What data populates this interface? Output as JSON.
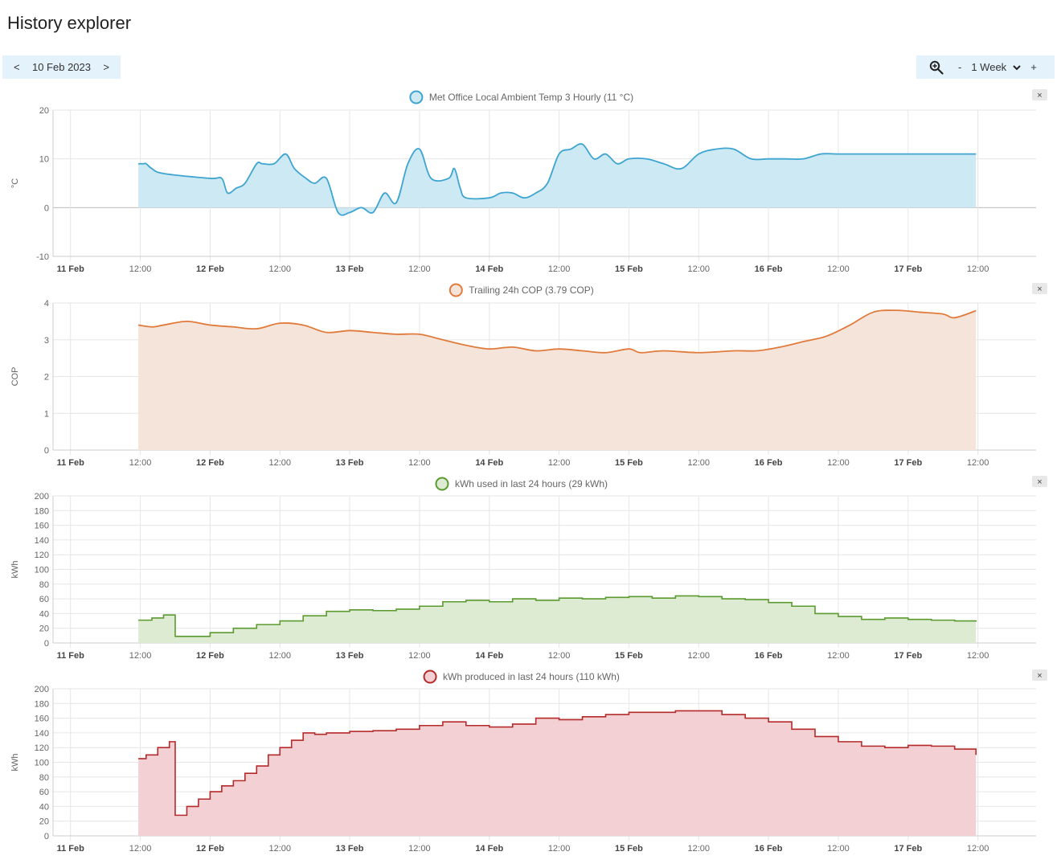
{
  "page": {
    "title": "History explorer"
  },
  "date_nav": {
    "prev": "<",
    "date": "10 Feb 2023",
    "next": ">"
  },
  "zoom": {
    "icon": "zoom-in-icon",
    "minus": "-",
    "range": "1 Week",
    "dropdown_icon": "chevron-down-icon",
    "plus": "+"
  },
  "x_ticks": [
    "11 Feb",
    "12:00",
    "12 Feb",
    "12:00",
    "13 Feb",
    "12:00",
    "14 Feb",
    "12:00",
    "15 Feb",
    "12:00",
    "16 Feb",
    "12:00",
    "17 Feb",
    "12:00"
  ],
  "close_label": "×",
  "chart_data": [
    {
      "type": "area",
      "title": "Met Office Local Ambient Temp 3 Hourly (11 °C)",
      "ylabel": "°C",
      "ylim": [
        -10,
        20
      ],
      "yticks": [
        -10,
        0,
        10,
        20
      ],
      "color": "#3ea4d0",
      "fill": "#cde9f3",
      "step": false,
      "series": [
        {
          "name": "Met Office Local Ambient Temp 3 Hourly (11 °C)",
          "x": [
            "2023-02-11T11:40",
            "2023-02-11T12:30",
            "2023-02-11T13:00",
            "2023-02-11T14:00",
            "2023-02-11T16:00",
            "2023-02-12T00:00",
            "2023-02-12T02:00",
            "2023-02-12T03:00",
            "2023-02-12T04:30",
            "2023-02-12T06:00",
            "2023-02-12T08:00",
            "2023-02-12T09:00",
            "2023-02-12T11:00",
            "2023-02-12T13:00",
            "2023-02-12T14:30",
            "2023-02-12T16:30",
            "2023-02-12T18:00",
            "2023-02-12T20:00",
            "2023-02-12T22:00",
            "2023-02-13T00:00",
            "2023-02-13T02:00",
            "2023-02-13T04:00",
            "2023-02-13T06:00",
            "2023-02-13T08:00",
            "2023-02-13T10:00",
            "2023-02-13T12:00",
            "2023-02-13T14:00",
            "2023-02-13T17:00",
            "2023-02-13T18:00",
            "2023-02-13T19:00",
            "2023-02-13T20:00",
            "2023-02-14T00:00",
            "2023-02-14T02:00",
            "2023-02-14T04:00",
            "2023-02-14T06:00",
            "2023-02-14T08:00",
            "2023-02-14T10:00",
            "2023-02-14T12:00",
            "2023-02-14T14:00",
            "2023-02-14T16:00",
            "2023-02-14T18:00",
            "2023-02-14T20:00",
            "2023-02-14T22:00",
            "2023-02-15T00:00",
            "2023-02-15T03:00",
            "2023-02-15T06:00",
            "2023-02-15T09:00",
            "2023-02-15T12:00",
            "2023-02-15T15:00",
            "2023-02-15T18:00",
            "2023-02-15T21:00",
            "2023-02-16T00:00",
            "2023-02-16T03:00",
            "2023-02-16T06:00",
            "2023-02-16T09:00",
            "2023-02-16T12:00",
            "2023-02-16T15:00",
            "2023-02-16T18:00",
            "2023-02-16T20:00",
            "2023-02-17T00:00",
            "2023-02-17T06:00",
            "2023-02-17T11:40"
          ],
          "y": [
            9,
            9,
            9,
            8,
            7,
            6,
            6,
            3,
            4,
            5,
            9,
            9,
            9,
            11,
            8,
            6,
            5,
            6,
            -1,
            -1,
            0,
            -1,
            3,
            1,
            9,
            12,
            6,
            6,
            8,
            4,
            2,
            2,
            3,
            3,
            2,
            3,
            5,
            11,
            12,
            13,
            10,
            11,
            9,
            10,
            10,
            9,
            8,
            11,
            12,
            12,
            10,
            10,
            10,
            10,
            11,
            11,
            11,
            11,
            11,
            11,
            11,
            11
          ]
        }
      ]
    },
    {
      "type": "area",
      "title": "Trailing 24h COP (3.79 COP)",
      "ylabel": "COP",
      "ylim": [
        0,
        4
      ],
      "yticks": [
        0,
        1,
        2,
        3,
        4
      ],
      "color": "#e07b3c",
      "fill": "#f5e4da",
      "step": false,
      "series": [
        {
          "name": "Trailing 24h COP (3.79 COP)",
          "x": [
            "2023-02-11T11:40",
            "2023-02-11T14:00",
            "2023-02-11T16:00",
            "2023-02-11T20:00",
            "2023-02-12T00:00",
            "2023-02-12T04:00",
            "2023-02-12T08:00",
            "2023-02-12T12:00",
            "2023-02-12T16:00",
            "2023-02-12T20:00",
            "2023-02-13T00:00",
            "2023-02-13T04:00",
            "2023-02-13T08:00",
            "2023-02-13T12:00",
            "2023-02-13T16:00",
            "2023-02-13T20:00",
            "2023-02-14T00:00",
            "2023-02-14T04:00",
            "2023-02-14T08:00",
            "2023-02-14T12:00",
            "2023-02-14T16:00",
            "2023-02-14T20:00",
            "2023-02-15T00:00",
            "2023-02-15T02:00",
            "2023-02-15T06:00",
            "2023-02-15T12:00",
            "2023-02-15T18:00",
            "2023-02-15T22:00",
            "2023-02-16T02:00",
            "2023-02-16T06:00",
            "2023-02-16T10:00",
            "2023-02-16T14:00",
            "2023-02-16T18:00",
            "2023-02-16T22:00",
            "2023-02-17T02:00",
            "2023-02-17T06:00",
            "2023-02-17T08:00",
            "2023-02-17T11:40"
          ],
          "y": [
            3.4,
            3.35,
            3.4,
            3.5,
            3.4,
            3.35,
            3.3,
            3.45,
            3.4,
            3.2,
            3.25,
            3.2,
            3.15,
            3.15,
            3.0,
            2.85,
            2.75,
            2.8,
            2.7,
            2.75,
            2.7,
            2.65,
            2.75,
            2.65,
            2.7,
            2.65,
            2.7,
            2.7,
            2.8,
            2.95,
            3.1,
            3.4,
            3.75,
            3.8,
            3.75,
            3.7,
            3.6,
            3.79
          ]
        }
      ]
    },
    {
      "type": "area",
      "title": "kWh used in last 24 hours (29 kWh)",
      "ylabel": "kWh",
      "ylim": [
        0,
        200
      ],
      "yticks": [
        0,
        20,
        40,
        60,
        80,
        100,
        120,
        140,
        160,
        180,
        200
      ],
      "color": "#5a9a2f",
      "fill": "#dcebd2",
      "step": true,
      "series": [
        {
          "name": "kWh used in last 24 hours (29 kWh)",
          "x": [
            "2023-02-11T11:40",
            "2023-02-11T14:00",
            "2023-02-11T16:00",
            "2023-02-11T18:00",
            "2023-02-12T00:00",
            "2023-02-12T04:00",
            "2023-02-12T08:00",
            "2023-02-12T12:00",
            "2023-02-12T16:00",
            "2023-02-12T20:00",
            "2023-02-13T00:00",
            "2023-02-13T04:00",
            "2023-02-13T08:00",
            "2023-02-13T12:00",
            "2023-02-13T16:00",
            "2023-02-13T20:00",
            "2023-02-14T00:00",
            "2023-02-14T04:00",
            "2023-02-14T08:00",
            "2023-02-14T12:00",
            "2023-02-14T16:00",
            "2023-02-14T20:00",
            "2023-02-15T00:00",
            "2023-02-15T04:00",
            "2023-02-15T08:00",
            "2023-02-15T12:00",
            "2023-02-15T16:00",
            "2023-02-15T20:00",
            "2023-02-16T00:00",
            "2023-02-16T04:00",
            "2023-02-16T08:00",
            "2023-02-16T12:00",
            "2023-02-16T16:00",
            "2023-02-16T20:00",
            "2023-02-17T00:00",
            "2023-02-17T04:00",
            "2023-02-17T08:00",
            "2023-02-17T11:40"
          ],
          "y": [
            31,
            34,
            38,
            9,
            14,
            20,
            25,
            30,
            37,
            43,
            45,
            44,
            46,
            50,
            56,
            58,
            56,
            60,
            58,
            61,
            60,
            62,
            63,
            61,
            64,
            63,
            60,
            59,
            55,
            50,
            40,
            36,
            32,
            34,
            32,
            31,
            30,
            29
          ]
        }
      ]
    },
    {
      "type": "area",
      "title": "kWh produced in last 24 hours (110 kWh)",
      "ylabel": "kWh",
      "ylim": [
        0,
        200
      ],
      "yticks": [
        0,
        20,
        40,
        60,
        80,
        100,
        120,
        140,
        160,
        180,
        200
      ],
      "color": "#b52a2a",
      "fill": "#f2d0d3",
      "step": true,
      "series": [
        {
          "name": "kWh produced in last 24 hours (110 kWh)",
          "x": [
            "2023-02-11T11:40",
            "2023-02-11T13:00",
            "2023-02-11T15:00",
            "2023-02-11T17:00",
            "2023-02-11T18:00",
            "2023-02-11T20:00",
            "2023-02-11T22:00",
            "2023-02-12T00:00",
            "2023-02-12T02:00",
            "2023-02-12T04:00",
            "2023-02-12T06:00",
            "2023-02-12T08:00",
            "2023-02-12T10:00",
            "2023-02-12T12:00",
            "2023-02-12T14:00",
            "2023-02-12T16:00",
            "2023-02-12T18:00",
            "2023-02-12T20:00",
            "2023-02-13T00:00",
            "2023-02-13T04:00",
            "2023-02-13T08:00",
            "2023-02-13T12:00",
            "2023-02-13T16:00",
            "2023-02-13T20:00",
            "2023-02-14T00:00",
            "2023-02-14T04:00",
            "2023-02-14T08:00",
            "2023-02-14T12:00",
            "2023-02-14T16:00",
            "2023-02-14T20:00",
            "2023-02-15T00:00",
            "2023-02-15T04:00",
            "2023-02-15T08:00",
            "2023-02-15T12:00",
            "2023-02-15T16:00",
            "2023-02-15T20:00",
            "2023-02-16T00:00",
            "2023-02-16T04:00",
            "2023-02-16T08:00",
            "2023-02-16T12:00",
            "2023-02-16T16:00",
            "2023-02-16T20:00",
            "2023-02-17T00:00",
            "2023-02-17T04:00",
            "2023-02-17T08:00",
            "2023-02-17T11:40"
          ],
          "y": [
            105,
            110,
            120,
            128,
            28,
            40,
            50,
            60,
            68,
            75,
            85,
            95,
            110,
            120,
            130,
            140,
            138,
            140,
            142,
            143,
            145,
            150,
            155,
            150,
            148,
            152,
            160,
            158,
            162,
            165,
            168,
            168,
            170,
            170,
            165,
            160,
            155,
            145,
            135,
            128,
            122,
            120,
            123,
            122,
            118,
            110
          ]
        }
      ]
    }
  ]
}
